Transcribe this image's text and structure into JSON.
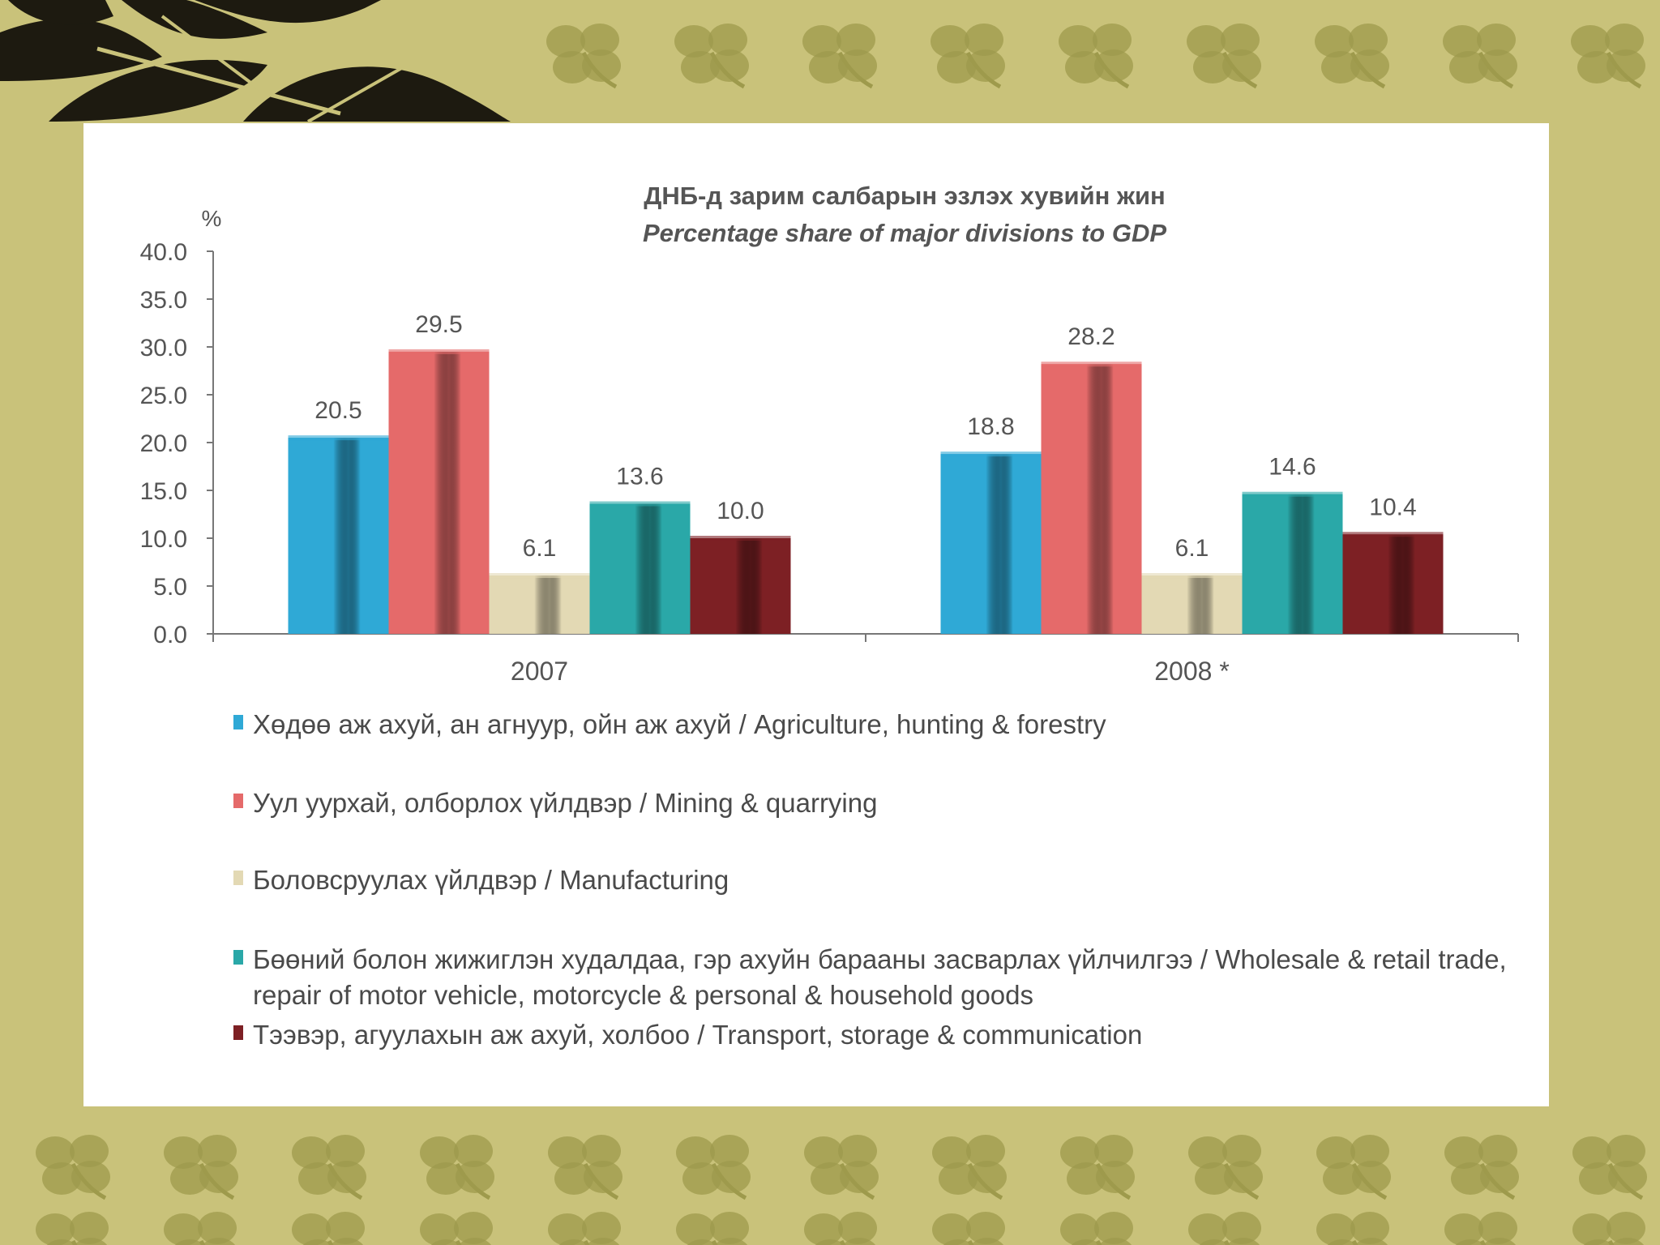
{
  "colors": {
    "background": "#c9c27a",
    "ornament": "#9e9a4c",
    "leaves": "#1d1a10",
    "panel": "#ffffff"
  },
  "chart_data": {
    "type": "bar",
    "title": "ДНБ-д зарим салбарын эзлэх хувийн жин",
    "subtitle": "Percentage share of major divisions to GDP",
    "ylabel": "%",
    "ylim": [
      0,
      40
    ],
    "yticks": [
      "0.0",
      "5.0",
      "10.0",
      "15.0",
      "20.0",
      "25.0",
      "30.0",
      "35.0",
      "40.0"
    ],
    "categories": [
      "2007",
      "2008 *"
    ],
    "legend_position": "bottom",
    "grid": false,
    "series": [
      {
        "name": "Хөдөө аж ахуй, ан агнуур, ойн аж ахуй  / Agriculture, hunting & forestry",
        "values": [
          20.5,
          18.8
        ],
        "labels": [
          "20.5",
          "18.8"
        ],
        "color": "#2fa9d6"
      },
      {
        "name": "Уул уурхай, олборлох үйлдвэр / Mining & quarrying",
        "values": [
          29.5,
          28.2
        ],
        "labels": [
          "29.5",
          "28.2"
        ],
        "color": "#e56a6a"
      },
      {
        "name": "Боловсруулах үйлдвэр / Manufacturing",
        "values": [
          6.1,
          6.1
        ],
        "labels": [
          "6.1",
          "6.1"
        ],
        "color": "#e3d9b4"
      },
      {
        "name": "Бөөний болон жижиглэн худалдаа, гэр ахуйн барааны засварлах үйлчилгээ / Wholesale & retail trade, repair of motor vehicle, motorcycle & personal & household goods",
        "values": [
          13.6,
          14.6
        ],
        "labels": [
          "13.6",
          "14.6"
        ],
        "color": "#2aa8a8"
      },
      {
        "name": "Тээвэр, агуулахын аж ахуй, холбоо /  Transport, storage & communication",
        "values": [
          10.0,
          10.4
        ],
        "labels": [
          "10.0",
          "10.4"
        ],
        "color": "#7d2024"
      }
    ]
  }
}
